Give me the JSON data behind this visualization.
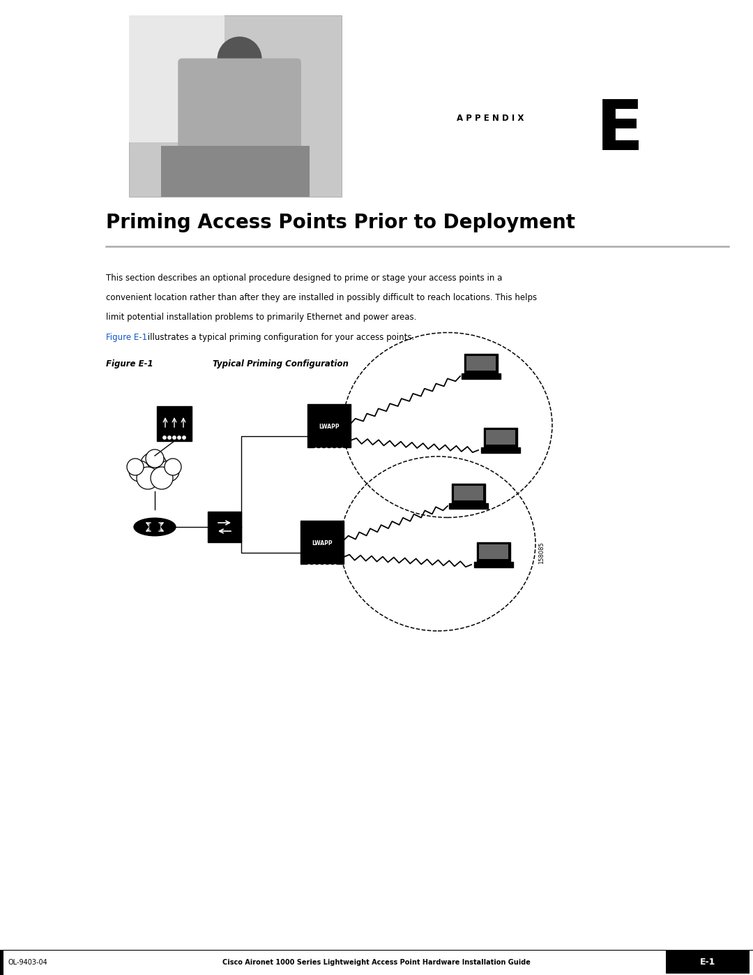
{
  "page_width": 10.8,
  "page_height": 13.97,
  "bg_color": "#ffffff",
  "title": "Priming Access Points Prior to Deployment",
  "appendix_label": "APPENDIX",
  "appendix_letter": "E",
  "body_text_line1": "This section describes an optional procedure designed to prime or stage your access points in a",
  "body_text_line2": "convenient location rather than after they are installed in possibly difficult to reach locations. This helps",
  "body_text_line3": "limit potential installation problems to primarily Ethernet and power areas.",
  "figure_ref_blue": "Figure E-1",
  "figure_ref_rest": " illustrates a typical priming configuration for your access points.",
  "figure_label": "Figure E-1",
  "figure_caption": "Typical Priming Configuration",
  "figure_number": "158085",
  "footer_left": "OL-9403-04",
  "footer_center": "Cisco Aironet 1000 Series Lightweight Access Point Hardware Installation Guide",
  "footer_right": "E-1",
  "separator_color": "#aaaaaa",
  "blue_link_color": "#1155cc",
  "black": "#000000"
}
